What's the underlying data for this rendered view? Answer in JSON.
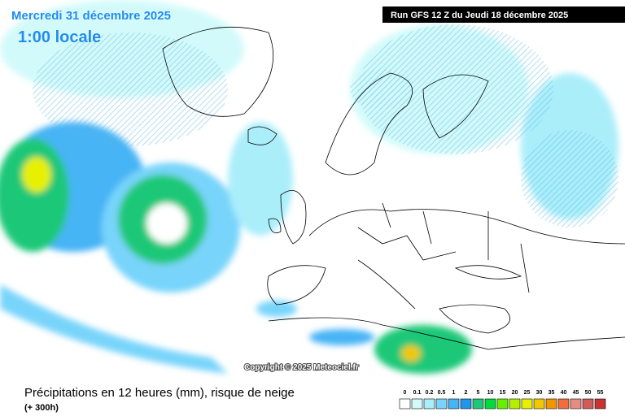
{
  "header": {
    "date": "Mercredi 31 décembre 2025",
    "time": "1:00 locale",
    "run": "Run GFS 12 Z du Jeudi 18 décembre 2025"
  },
  "copyright": "Copyright © 2025 Meteociel.fr",
  "footer": {
    "title": "Précipitations en 12 heures (mm), risque de neige",
    "lead": "(+ 300h)"
  },
  "legend": {
    "labels": [
      0,
      0.1,
      0.2,
      0.5,
      1,
      2,
      5,
      10,
      15,
      20,
      25,
      30,
      35,
      40,
      45,
      50,
      55
    ],
    "colors": [
      "#ffffff",
      "#d2fafa",
      "#aaeefa",
      "#78d4fa",
      "#46b4f5",
      "#1e96eb",
      "#1ec878",
      "#00dc3c",
      "#64f000",
      "#b4f000",
      "#e6f000",
      "#f0c800",
      "#f09600",
      "#f06e3c",
      "#e68c82",
      "#d25a5a",
      "#c83232"
    ]
  }
}
